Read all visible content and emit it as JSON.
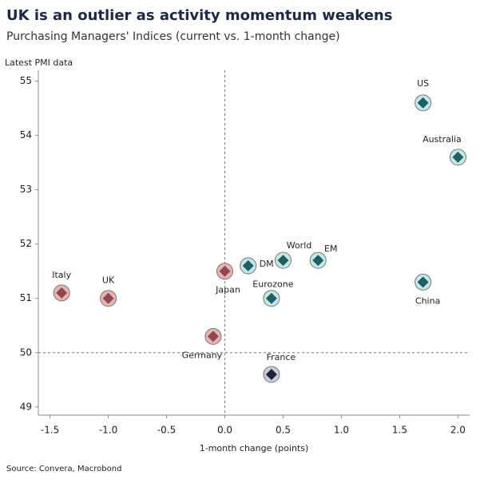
{
  "chart_data": {
    "type": "scatter",
    "title": "UK is an outlier as activity momentum weakens",
    "subtitle": "Purchasing Managers' Indices (current vs. 1-month change)",
    "y_label": "Latest PMI data",
    "x_label": "1-month change (points)",
    "source": "Source: Convera, Macrobond",
    "labels": [
      "US",
      "Australia",
      "World",
      "EM",
      "DM",
      "Eurozone",
      "China",
      "France",
      "Japan",
      "Italy",
      "UK",
      "Germany"
    ],
    "x": [
      1.7,
      2.0,
      0.5,
      0.8,
      0.2,
      0.4,
      1.7,
      0.4,
      0.0,
      -1.4,
      -1.0,
      -0.1
    ],
    "y": [
      54.6,
      53.6,
      51.7,
      51.7,
      51.6,
      51.0,
      51.3,
      49.6,
      51.5,
      51.1,
      51.0,
      50.3
    ],
    "colors": [
      "#1d5f62",
      "#1d5f62",
      "#1d5f62",
      "#1d5f62",
      "#1d5f62",
      "#1d5f62",
      "#1d5f62",
      "#17263a",
      "#8c4a50",
      "#8c4a50",
      "#8c4a50",
      "#8c4a50"
    ],
    "halo_colors": [
      "#c4e8e8",
      "#c4e8e8",
      "#c4e8e8",
      "#c4e8e8",
      "#c4e8e8",
      "#c4e8e8",
      "#c4e8e8",
      "#c9cdd4",
      "#ebb3ae",
      "#ebb3ae",
      "#ebb3ae",
      "#ebb3ae"
    ],
    "xlim": [
      -1.6,
      2.1
    ],
    "ylim": [
      48.85,
      55.2
    ],
    "xticks": [
      -1.5,
      {
        "value": -1.0,
        "label": "-1.0"
      },
      -0.5,
      {
        "value": 0.0,
        "label": "0.0"
      },
      0.5,
      {
        "value": 1.0,
        "label": "1.0"
      },
      1.5,
      {
        "value": 2.0,
        "label": "2.0"
      }
    ],
    "yticks": [
      49,
      50,
      51,
      52,
      53,
      54,
      55
    ],
    "vline": 0,
    "hline": 50
  }
}
